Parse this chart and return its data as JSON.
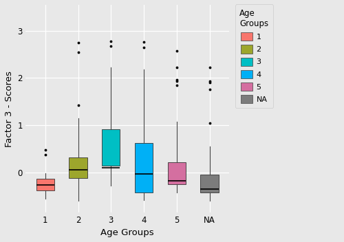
{
  "groups": [
    "1",
    "2",
    "3",
    "4",
    "5",
    "NA"
  ],
  "colors": [
    "#f8766d",
    "#9da62c",
    "#00bfc4",
    "#00b0f6",
    "#d46fa0",
    "#7c7c7c"
  ],
  "legend_colors": [
    "#f8766d",
    "#9da62c",
    "#00bfc4",
    "#00b0f6",
    "#d46fa0",
    "#7c7c7c"
  ],
  "legend_labels": [
    "1",
    "2",
    "3",
    "4",
    "5",
    "NA"
  ],
  "box_data": {
    "1": {
      "q1": -0.38,
      "median": -0.27,
      "q3": -0.13,
      "whislo": -0.55,
      "whishi": -0.02,
      "fliers": [
        0.48,
        0.37
      ]
    },
    "2": {
      "q1": -0.12,
      "median": 0.06,
      "q3": 0.32,
      "whislo": -0.6,
      "whishi": 1.15,
      "fliers": [
        2.55,
        1.42,
        2.75
      ]
    },
    "3": {
      "q1": 0.15,
      "median": 0.1,
      "q3": 0.92,
      "whislo": -0.28,
      "whishi": 2.22,
      "fliers": [
        2.68,
        2.78
      ]
    },
    "4": {
      "q1": -0.42,
      "median": -0.03,
      "q3": 0.62,
      "whislo": -0.58,
      "whishi": 2.18,
      "fliers": [
        2.65,
        2.76
      ]
    },
    "5": {
      "q1": -0.25,
      "median": -0.18,
      "q3": 0.22,
      "whislo": -0.42,
      "whishi": 1.07,
      "fliers": [
        1.84,
        1.94,
        1.97,
        2.22,
        2.58
      ]
    },
    "NA": {
      "q1": -0.42,
      "median": -0.35,
      "q3": -0.05,
      "whislo": -0.6,
      "whishi": 0.55,
      "fliers": [
        1.05,
        1.76,
        1.9,
        1.93,
        2.22
      ]
    }
  },
  "xlabel": "Age Groups",
  "ylabel": "Factor 3 - Scores",
  "ylim": [
    -0.85,
    3.55
  ],
  "yticks": [
    0,
    1,
    2,
    3
  ],
  "background_color": "#e8e8e8",
  "grid_color": "#ffffff",
  "legend_title": "Age\nGroups"
}
